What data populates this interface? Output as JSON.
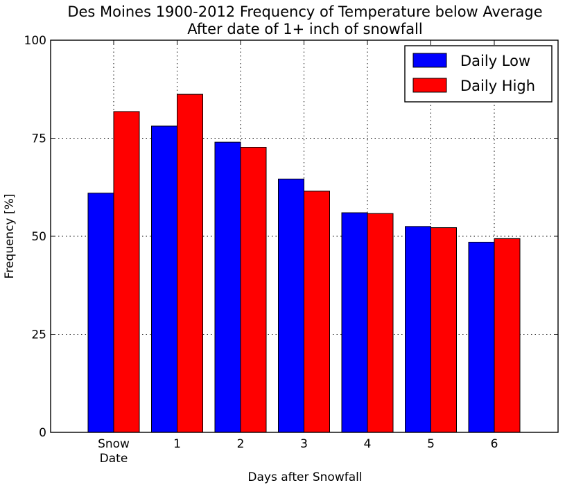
{
  "chart_data": {
    "type": "bar",
    "title": "Des Moines 1900-2012 Frequency of Temperature below Average",
    "subtitle": "After date of 1+ inch of snowfall",
    "xlabel": "Days after Snowfall",
    "ylabel": "Frequency [%]",
    "ylim": [
      0,
      100
    ],
    "yticks": [
      "0",
      "25",
      "50",
      "75",
      "100"
    ],
    "ytick_values": [
      0,
      25,
      50,
      75,
      100
    ],
    "categories": [
      "Snow Date",
      "1",
      "2",
      "3",
      "4",
      "5",
      "6"
    ],
    "series": [
      {
        "name": "Daily Low",
        "color": "#0000ff",
        "values": [
          61.0,
          78.1,
          74.0,
          64.6,
          56.0,
          52.5,
          48.5
        ]
      },
      {
        "name": "Daily High",
        "color": "#ff0000",
        "values": [
          81.8,
          86.2,
          72.7,
          61.5,
          55.8,
          52.2,
          49.4
        ]
      }
    ],
    "grid": true,
    "legend_position": "top-right"
  }
}
